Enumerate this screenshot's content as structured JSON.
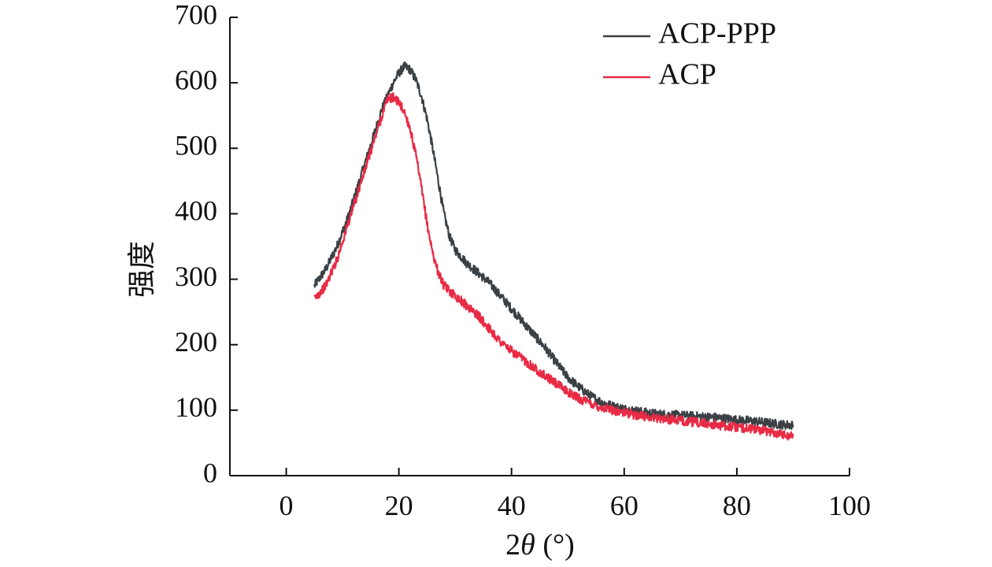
{
  "chart_data": {
    "type": "line",
    "title": "",
    "xlabel_number": "2",
    "xlabel_symbol": "θ",
    "xlabel_unit": " (°)",
    "ylabel": "强度",
    "xlim": [
      -10,
      100
    ],
    "ylim": [
      0,
      700
    ],
    "xticks": [
      0,
      20,
      40,
      60,
      80,
      100
    ],
    "yticks": [
      0,
      100,
      200,
      300,
      400,
      500,
      600,
      700
    ],
    "grid": false,
    "legend_position": "top-right",
    "series": [
      {
        "name": "ACP-PPP",
        "color": "#3b4045",
        "x": [
          5,
          7,
          9,
          11,
          13,
          15,
          17,
          19,
          20,
          21,
          22,
          23,
          24,
          25,
          26,
          27,
          28,
          29,
          30,
          32,
          34,
          36,
          38,
          40,
          42,
          44,
          46,
          48,
          50,
          52,
          54,
          56,
          58,
          60,
          62,
          64,
          66,
          68,
          70,
          72,
          74,
          76,
          78,
          80,
          82,
          84,
          86,
          88,
          90
        ],
        "y": [
          290,
          315,
          350,
          395,
          450,
          505,
          560,
          600,
          615,
          625,
          620,
          605,
          580,
          545,
          500,
          450,
          400,
          365,
          345,
          325,
          310,
          295,
          275,
          255,
          235,
          215,
          195,
          172,
          150,
          135,
          122,
          112,
          106,
          102,
          99,
          96,
          94,
          93,
          92,
          91,
          90,
          89,
          87,
          85,
          84,
          82,
          80,
          78,
          77
        ]
      },
      {
        "name": "ACP",
        "color": "#e82b45",
        "x": [
          5,
          7,
          9,
          11,
          13,
          15,
          17,
          18,
          19,
          20,
          21,
          22,
          23,
          24,
          25,
          26,
          27,
          28,
          30,
          32,
          34,
          36,
          38,
          40,
          42,
          44,
          46,
          48,
          50,
          52,
          54,
          56,
          58,
          60,
          62,
          64,
          66,
          68,
          70,
          72,
          74,
          76,
          78,
          80,
          82,
          84,
          86,
          88,
          90
        ],
        "y": [
          270,
          290,
          330,
          385,
          440,
          495,
          550,
          575,
          578,
          570,
          555,
          530,
          490,
          440,
          385,
          340,
          310,
          290,
          275,
          260,
          245,
          225,
          205,
          190,
          178,
          165,
          152,
          140,
          128,
          118,
          110,
          104,
          100,
          96,
          93,
          90,
          88,
          86,
          84,
          82,
          80,
          78,
          76,
          74,
          72,
          70,
          67,
          64,
          60
        ]
      }
    ]
  }
}
